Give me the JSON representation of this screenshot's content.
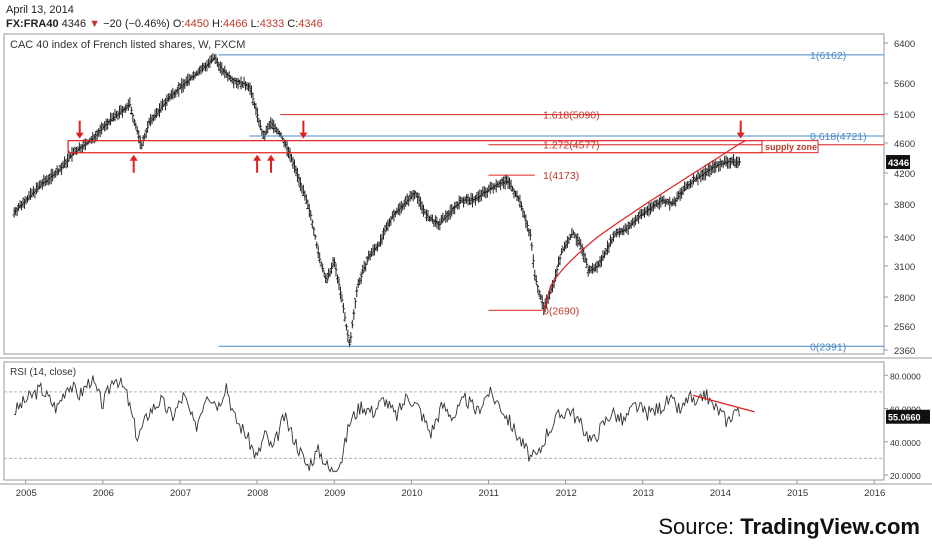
{
  "header": {
    "date": "April 13, 2014",
    "symbol": "FX:FRA40",
    "last": "4346",
    "change_arrow": "▼",
    "change": "−20 (−0.46%)",
    "o_label": "O:",
    "o": "4450",
    "h_label": "H:",
    "h": "4466",
    "l_label": "L:",
    "l": "4333",
    "c_label": "C:",
    "c": "4346"
  },
  "source": {
    "prefix": "Source: ",
    "brand": "TradingView.com"
  },
  "colors": {
    "price": "#222222",
    "red": "#e02020",
    "dark_red": "#c0392b",
    "blue": "#4a88c8",
    "grid": "#b0b0b0"
  },
  "chart_data": [
    {
      "type": "ohlc-bars",
      "title": "CAC 40 index of French listed shares, W, FXCM",
      "x_axis_years": [
        "2005",
        "2006",
        "2007",
        "2008",
        "2009",
        "2010",
        "2011",
        "2012",
        "2013",
        "2014",
        "2015",
        "2016"
      ],
      "y_ticks": [
        "6400",
        "5600",
        "5100",
        "4600",
        "4200",
        "3800",
        "3400",
        "3100",
        "2800",
        "2560",
        "2360"
      ],
      "ylim": [
        2300,
        6450
      ],
      "last_price_badge": "4346",
      "series": [
        {
          "x": [
            2004.85,
            2005.0,
            2005.2,
            2005.45,
            2005.6,
            2005.85,
            2006.1,
            2006.35,
            2006.5,
            2006.6,
            2006.85,
            2007.1,
            2007.3,
            2007.45,
            2007.55,
            2007.7,
            2007.9,
            2008.0,
            2008.08,
            2008.18,
            2008.3,
            2008.38,
            2008.5,
            2008.6,
            2008.7,
            2008.8,
            2008.9,
            2009.0,
            2009.12,
            2009.2,
            2009.3,
            2009.45,
            2009.6,
            2009.75,
            2009.9,
            2010.05,
            2010.2,
            2010.35,
            2010.5,
            2010.65,
            2010.8,
            2010.95,
            2011.1,
            2011.25,
            2011.4,
            2011.55,
            2011.6,
            2011.72,
            2011.85,
            2011.95,
            2012.1,
            2012.2,
            2012.3,
            2012.42,
            2012.55,
            2012.65,
            2012.8,
            2012.95,
            2013.1,
            2013.25,
            2013.4,
            2013.5,
            2013.65,
            2013.8,
            2013.95,
            2014.1,
            2014.27
          ],
          "close": [
            3700,
            3850,
            4050,
            4250,
            4450,
            4650,
            5000,
            5250,
            4550,
            4950,
            5350,
            5650,
            5900,
            6100,
            5850,
            5650,
            5550,
            5100,
            4700,
            4950,
            4750,
            4550,
            4250,
            3950,
            3650,
            3200,
            2950,
            3150,
            2700,
            2391,
            2900,
            3200,
            3350,
            3650,
            3800,
            3950,
            3650,
            3550,
            3700,
            3850,
            3850,
            3950,
            4050,
            4100,
            3850,
            3400,
            3000,
            2690,
            2950,
            3250,
            3450,
            3300,
            3050,
            3100,
            3300,
            3450,
            3500,
            3650,
            3750,
            3850,
            3800,
            3950,
            4100,
            4200,
            4300,
            4350,
            4346
          ]
        }
      ],
      "horizontal_levels": [
        {
          "label": "1(6162)",
          "value": 6162,
          "color": "blue"
        },
        {
          "label": "0.618(4721)",
          "value": 4721,
          "color": "blue"
        },
        {
          "label": "0(2391)",
          "value": 2391,
          "color": "blue"
        },
        {
          "label": "1.618(5090)",
          "value": 5090,
          "color": "red"
        },
        {
          "label": "1.272(4577)",
          "value": 4577,
          "color": "red"
        },
        {
          "label": "1(4173)",
          "value": 4173,
          "color": "red"
        },
        {
          "label": "0(2690)",
          "value": 2690,
          "color": "red"
        }
      ],
      "zone": {
        "label": "supply zone",
        "top": 4640,
        "bottom": 4470
      },
      "arrows_down_years": [
        2005.7,
        2008.6,
        2014.27
      ],
      "arrows_up_years": [
        2006.4,
        2008.0,
        2008.18
      ]
    },
    {
      "type": "line",
      "title": "RSI (14, close)",
      "y_ticks": [
        "80.0000",
        "60.0000",
        "40.0000",
        "20.0000"
      ],
      "ylim": [
        17,
        88
      ],
      "reference_levels": [
        70,
        30
      ],
      "last_value_badge": "55.0660",
      "series": [
        {
          "x": [
            2004.85,
            2005.0,
            2005.2,
            2005.4,
            2005.55,
            2005.7,
            2005.85,
            2006.0,
            2006.15,
            2006.3,
            2006.45,
            2006.6,
            2006.75,
            2006.9,
            2007.05,
            2007.2,
            2007.35,
            2007.5,
            2007.6,
            2007.7,
            2007.85,
            2008.0,
            2008.1,
            2008.2,
            2008.35,
            2008.5,
            2008.65,
            2008.8,
            2008.95,
            2009.1,
            2009.2,
            2009.35,
            2009.5,
            2009.65,
            2009.8,
            2009.95,
            2010.1,
            2010.25,
            2010.4,
            2010.55,
            2010.7,
            2010.85,
            2011.0,
            2011.15,
            2011.3,
            2011.45,
            2011.55,
            2011.65,
            2011.75,
            2011.9,
            2012.05,
            2012.2,
            2012.35,
            2012.45,
            2012.6,
            2012.75,
            2012.9,
            2013.05,
            2013.2,
            2013.35,
            2013.5,
            2013.6,
            2013.7,
            2013.8,
            2013.9,
            2014.0,
            2014.1,
            2014.2,
            2014.27
          ],
          "values": [
            58,
            65,
            72,
            60,
            75,
            68,
            78,
            62,
            80,
            70,
            42,
            58,
            65,
            55,
            68,
            48,
            70,
            62,
            75,
            55,
            45,
            30,
            45,
            35,
            55,
            40,
            25,
            35,
            22,
            30,
            52,
            62,
            58,
            66,
            55,
            68,
            60,
            45,
            62,
            55,
            66,
            58,
            70,
            62,
            50,
            38,
            30,
            32,
            45,
            55,
            60,
            50,
            40,
            48,
            58,
            52,
            62,
            57,
            60,
            65,
            58,
            68,
            60,
            70,
            62,
            58,
            52,
            60,
            55.066
          ]
        }
      ],
      "divergence": {
        "x": [
          2013.65,
          2014.45
        ],
        "y": [
          68,
          58
        ]
      }
    }
  ]
}
